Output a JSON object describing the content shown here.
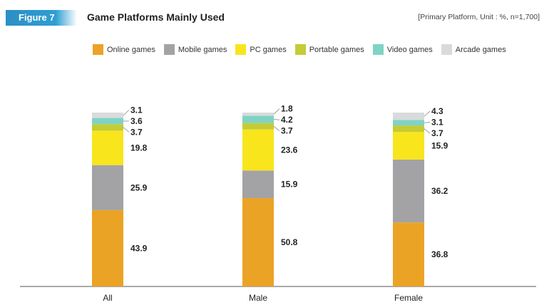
{
  "header": {
    "badge": "Figure 7",
    "title": "Game Platforms Mainly Used",
    "note": "[Primary Platform, Unit : %, n=1,700]"
  },
  "colors": {
    "Online games": "#eba325",
    "Mobile games": "#a3a3a5",
    "PC games": "#f8e51c",
    "Portable games": "#c4cc36",
    "Video games": "#7fd3c5",
    "Arcade games": "#d9dadc"
  },
  "chart_data": {
    "type": "bar",
    "stacked": true,
    "categories": [
      "All",
      "Male",
      "Female"
    ],
    "series": [
      {
        "name": "Online games",
        "values": [
          43.9,
          50.8,
          36.8
        ]
      },
      {
        "name": "Mobile games",
        "values": [
          25.9,
          15.9,
          36.2
        ]
      },
      {
        "name": "PC games",
        "values": [
          19.8,
          23.6,
          15.9
        ]
      },
      {
        "name": "Portable games",
        "values": [
          3.7,
          3.7,
          3.7
        ]
      },
      {
        "name": "Video games",
        "values": [
          3.6,
          4.2,
          3.1
        ]
      },
      {
        "name": "Arcade games",
        "values": [
          3.1,
          1.8,
          4.3
        ]
      }
    ],
    "ylim": [
      0,
      100
    ],
    "grid": false,
    "legend": "top"
  }
}
